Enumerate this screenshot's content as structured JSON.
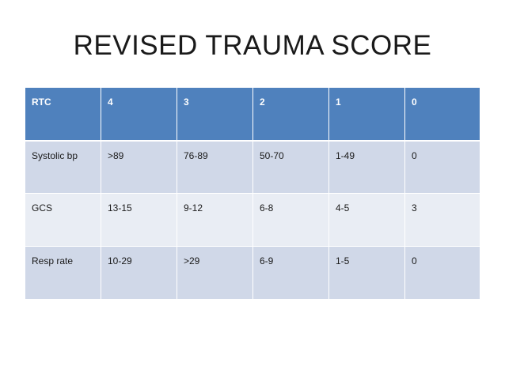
{
  "slide": {
    "title": "REVISED TRAUMA SCORE"
  },
  "table": {
    "headers": [
      "RTC",
      "4",
      "3",
      "2",
      "1",
      "0"
    ],
    "rows": [
      [
        "Systolic bp",
        ">89",
        "76-89",
        "50-70",
        "1-49",
        "0"
      ],
      [
        "GCS",
        "13-15",
        "9-12",
        "6-8",
        "4-5",
        "3"
      ],
      [
        "Resp rate",
        "10-29",
        ">29",
        "6-9",
        "1-5",
        "0"
      ]
    ]
  },
  "colors": {
    "header_fill": "#4f81bd",
    "row_fill_dark": "#d0d8e8",
    "row_fill_light": "#e9edf4"
  }
}
